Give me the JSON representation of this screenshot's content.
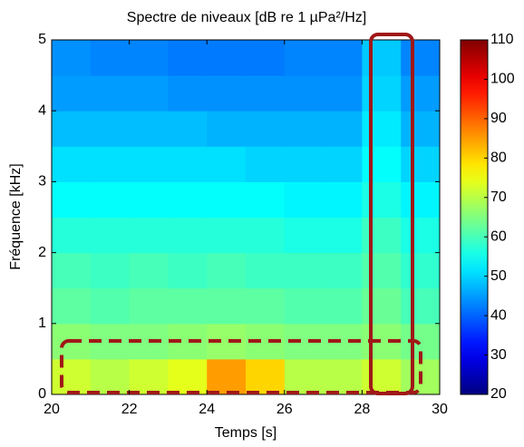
{
  "chart_data": {
    "type": "heatmap",
    "title": "Spectre de niveaux [dB re 1 µPa²/Hz]",
    "x_label": "Temps [s]",
    "y_label": "Fréquence [kHz]",
    "x_edges": [
      20,
      21,
      22,
      23,
      24,
      25,
      26,
      27,
      28,
      29,
      30
    ],
    "y_edges": [
      0,
      0.5,
      1,
      1.5,
      2,
      2.5,
      3,
      3.5,
      4,
      4.5,
      5
    ],
    "z": [
      [
        72,
        70,
        72,
        74,
        85,
        80,
        70,
        70,
        72,
        68
      ],
      [
        66,
        65,
        65,
        66,
        67,
        66,
        65,
        65,
        66,
        64
      ],
      [
        62,
        61,
        62,
        62,
        62,
        62,
        61,
        61,
        63,
        60
      ],
      [
        60,
        59,
        60,
        59,
        60,
        59,
        59,
        59,
        61,
        58
      ],
      [
        57,
        57,
        57,
        57,
        57,
        57,
        56,
        56,
        59,
        56
      ],
      [
        54,
        54,
        54,
        54,
        54,
        54,
        53,
        53,
        56,
        53
      ],
      [
        51,
        51,
        51,
        51,
        51,
        50,
        50,
        50,
        54,
        50
      ],
      [
        48,
        48,
        48,
        48,
        47,
        47,
        47,
        47,
        52,
        47
      ],
      [
        45,
        45,
        45,
        44,
        44,
        44,
        44,
        44,
        50,
        45
      ],
      [
        44,
        43,
        43,
        42,
        42,
        42,
        43,
        43,
        49,
        43
      ]
    ],
    "xlim": [
      20,
      30
    ],
    "xticks": [
      20,
      22,
      24,
      26,
      28,
      30
    ],
    "ylim": [
      0,
      5
    ],
    "yticks": [
      0,
      1,
      2,
      3,
      4,
      5
    ],
    "clim": [
      20,
      110
    ],
    "cticks": [
      20,
      30,
      40,
      50,
      60,
      70,
      80,
      90,
      100,
      110
    ],
    "colormap": "jet"
  }
}
